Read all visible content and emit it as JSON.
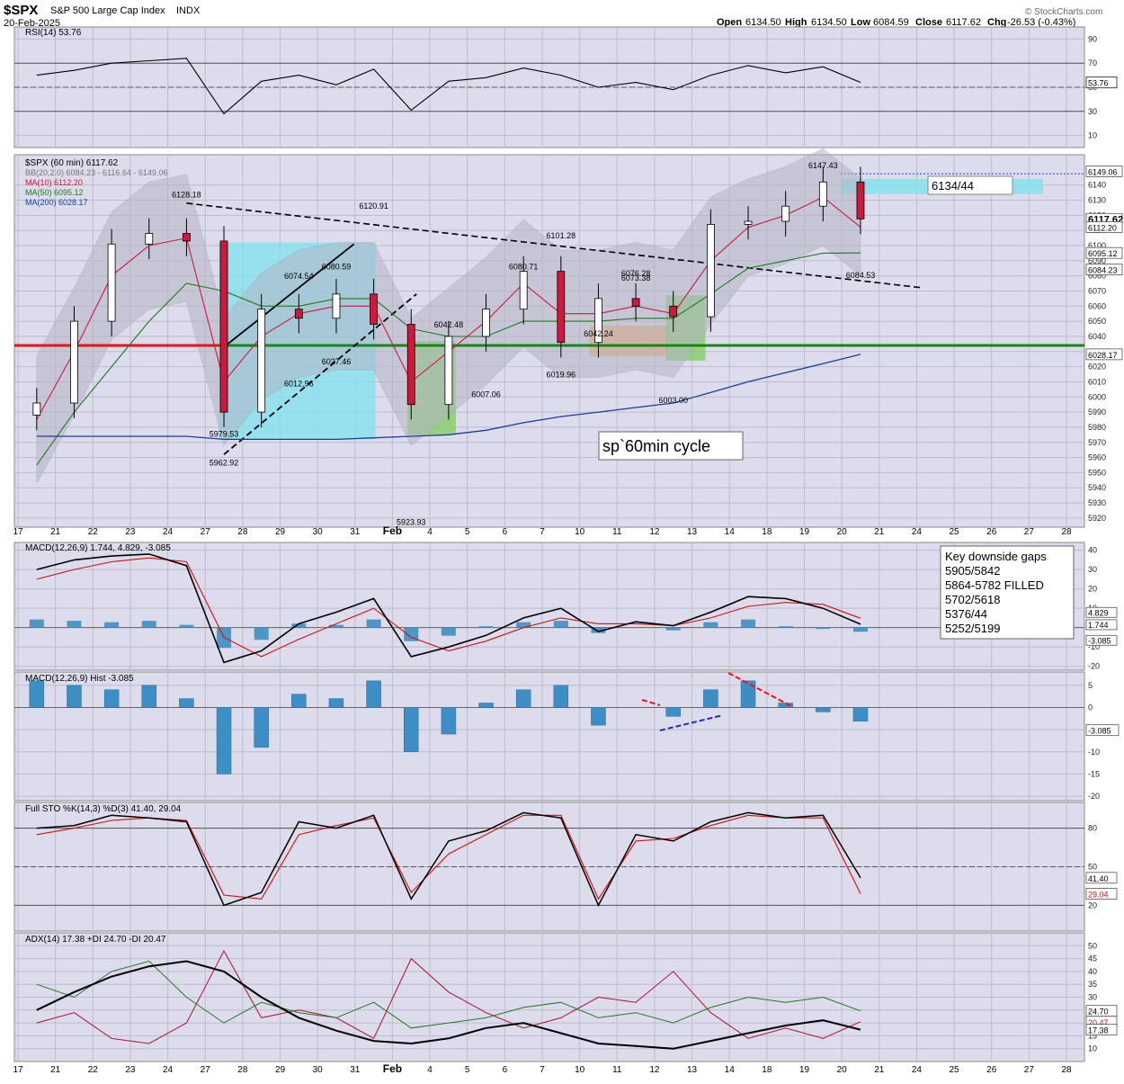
{
  "header": {
    "symbol": "$SPX",
    "name": "S&P 500 Large Cap Index",
    "exchange": "INDX",
    "date": "20-Feb-2025",
    "open_label": "Open",
    "open": "6134.50",
    "high_label": "High",
    "high": "6134.50",
    "low_label": "Low",
    "low": "6084.59",
    "close_label": "Close",
    "close": "6117.62",
    "chg_label": "Chg",
    "chg": "-26.53 (-0.43%)",
    "watermark": "© StockCharts.com"
  },
  "colors": {
    "panel_bg": "#dcdcec",
    "grid": "#bcbccc",
    "up": "#ffffff",
    "down": "#cc1a3c",
    "ma10": "#cc1a3c",
    "ma50": "#1f7a1f",
    "ma200": "#1a3c9c",
    "bb": "#a8a8b8",
    "hist": "#3d8ec4",
    "support": "#128a12",
    "resistance": "#ee1111",
    "box_cyan": "#7fe3ee",
    "box_green": "#7fcc5c",
    "box_orange": "#f0a35a"
  },
  "legends": {
    "rsi": "RSI(14) 53.76",
    "price": "$SPX (60 min) 6117.62",
    "bb": "BB(20,2.0) 6084.23 - 6116.64 - 6149.06",
    "ma10": "MA(10) 6112.20",
    "ma50": "MA(50) 6095.12",
    "ma200": "MA(200) 6028.17",
    "macd": "MACD(12,26,9) 1.744, 4.829, -3.085",
    "hist": "MACD(12,26,9) Hist -3.085",
    "sto": "Full STO %K(14,3) %D(3) 41.40, 29.04",
    "adx": "ADX(14) 17.38 +DI 24.70 -DI 20.47"
  },
  "annotations": {
    "target_box": "6134/44",
    "cycle": "sp`60min cycle",
    "gaps_title": "Key downside gaps",
    "gaps": [
      "5905/5842",
      "5864-5782 FILLED",
      "5702/5618",
      "5376/44",
      "5252/5199"
    ]
  },
  "chart_data": [
    {
      "type": "line",
      "panel": "rsi",
      "title": "RSI(14) 53.76",
      "ylim": [
        0,
        100
      ],
      "ticks": [
        10,
        30,
        50,
        70,
        90
      ],
      "last_label": "53.76",
      "x": [
        "Jan 17",
        "Jan 21",
        "Jan 22",
        "Jan 23",
        "Jan 24",
        "Jan 27",
        "Jan 28",
        "Jan 29",
        "Jan 30",
        "Jan 31",
        "Feb 3",
        "Feb 4",
        "Feb 5",
        "Feb 6",
        "Feb 7",
        "Feb 10",
        "Feb 11",
        "Feb 12",
        "Feb 13",
        "Feb 14",
        "Feb 18",
        "Feb 19",
        "Feb 20"
      ],
      "values": [
        60,
        64,
        70,
        72,
        74,
        28,
        55,
        60,
        52,
        65,
        31,
        55,
        58,
        66,
        60,
        50,
        54,
        48,
        60,
        68,
        62,
        67,
        54
      ]
    },
    {
      "type": "line",
      "panel": "price",
      "title": "$SPX (60 min) 6117.62",
      "ylim": [
        5914,
        6160
      ],
      "ticks": [
        5920,
        5930,
        5940,
        5950,
        5960,
        5970,
        5980,
        5990,
        6000,
        6010,
        6020,
        6030,
        6040,
        6050,
        6060,
        6070,
        6080,
        6090,
        6100,
        6110,
        6120,
        6130,
        6140
      ],
      "right_labels": [
        "6149.06",
        "6117.62",
        "6112.20",
        "6095.12",
        "6084.23",
        "6028.17"
      ],
      "x": [
        "Jan 17",
        "Jan 21",
        "Jan 22",
        "Jan 23",
        "Jan 24",
        "Jan 27",
        "Jan 28",
        "Jan 29",
        "Jan 30",
        "Jan 31",
        "Feb 3",
        "Feb 4",
        "Feb 5",
        "Feb 6",
        "Feb 7",
        "Feb 10",
        "Feb 11",
        "Feb 12",
        "Feb 13",
        "Feb 14",
        "Feb 18",
        "Feb 19",
        "Feb 20"
      ],
      "series": [
        {
          "name": "$SPX",
          "values": [
            5996,
            6050,
            6101,
            6108,
            6103,
            5990,
            6058,
            6052,
            6068,
            6048,
            5995,
            6040,
            6058,
            6083,
            6036,
            6065,
            6060,
            6053,
            6114,
            6116,
            6126,
            6142,
            6117.62
          ]
        },
        {
          "name": "MA(10)",
          "values": [
            5985,
            6030,
            6080,
            6100,
            6105,
            6010,
            6040,
            6055,
            6060,
            6060,
            6010,
            6030,
            6050,
            6075,
            6055,
            6055,
            6060,
            6055,
            6090,
            6112,
            6120,
            6132,
            6112.2
          ]
        },
        {
          "name": "MA(50)",
          "values": [
            5955,
            5990,
            6020,
            6050,
            6075,
            6070,
            6060,
            6060,
            6065,
            6065,
            6045,
            6040,
            6040,
            6050,
            6050,
            6050,
            6052,
            6052,
            6068,
            6085,
            6090,
            6095,
            6095.12
          ]
        },
        {
          "name": "MA(200)",
          "values": [
            5974,
            5974,
            5974,
            5974,
            5974,
            5972,
            5972,
            5972,
            5972,
            5973,
            5974,
            5975,
            5978,
            5983,
            5987,
            5990,
            5993,
            5996,
            6003,
            6010,
            6016,
            6022,
            6028.17
          ]
        }
      ],
      "price_labels": [
        {
          "x": "Jan 24",
          "y": 6128.18,
          "text": "6128.18"
        },
        {
          "x": "Jan 27",
          "y": 5962.92,
          "text": "5962.92"
        },
        {
          "x": "Jan 27",
          "y": 5979.53,
          "text": "5979.53"
        },
        {
          "x": "Jan 29",
          "y": 6074.54,
          "text": "6074.54"
        },
        {
          "x": "Jan 29",
          "y": 6012.96,
          "text": "6012.96"
        },
        {
          "x": "Jan 30",
          "y": 6080.59,
          "text": "6080.59"
        },
        {
          "x": "Jan 30",
          "y": 6027.46,
          "text": "6027.46"
        },
        {
          "x": "Jan 31",
          "y": 6120.91,
          "text": "6120.91"
        },
        {
          "x": "Feb 3",
          "y": 5923.93,
          "text": "5923.93"
        },
        {
          "x": "Feb 4",
          "y": 6042.48,
          "text": "6042.48"
        },
        {
          "x": "Feb 5",
          "y": 6007.06,
          "text": "6007.06"
        },
        {
          "x": "Feb 6",
          "y": 6080.71,
          "text": "6080.71"
        },
        {
          "x": "Feb 7",
          "y": 6101.28,
          "text": "6101.28"
        },
        {
          "x": "Feb 7",
          "y": 6019.96,
          "text": "6019.96"
        },
        {
          "x": "Feb 10",
          "y": 6042.24,
          "text": "6042.24"
        },
        {
          "x": "Feb 11",
          "y": 6073.38,
          "text": "6073.38"
        },
        {
          "x": "Feb 11",
          "y": 6076.28,
          "text": "6076.28"
        },
        {
          "x": "Feb 12",
          "y": 6003.0,
          "text": "6003.00"
        },
        {
          "x": "Feb 19",
          "y": 6147.43,
          "text": "6147.43"
        },
        {
          "x": "Feb 20",
          "y": 6084.53,
          "text": "6084.53"
        }
      ]
    },
    {
      "type": "line",
      "panel": "macd",
      "title": "MACD(12,26,9) 1.744, 4.829, -3.085",
      "ylim": [
        -22,
        44
      ],
      "ticks": [
        -20,
        -10,
        0,
        10,
        20,
        30,
        40
      ],
      "right_labels": [
        "4.829",
        "1.744",
        "-3.085"
      ],
      "x": [
        "Jan 17",
        "Jan 21",
        "Jan 22",
        "Jan 23",
        "Jan 24",
        "Jan 27",
        "Jan 28",
        "Jan 29",
        "Jan 30",
        "Jan 31",
        "Feb 3",
        "Feb 4",
        "Feb 5",
        "Feb 6",
        "Feb 7",
        "Feb 10",
        "Feb 11",
        "Feb 12",
        "Feb 13",
        "Feb 14",
        "Feb 18",
        "Feb 19",
        "Feb 20"
      ],
      "series": [
        {
          "name": "MACD",
          "values": [
            30,
            35,
            37,
            38,
            32,
            -18,
            -12,
            2,
            8,
            15,
            -15,
            -10,
            -4,
            5,
            10,
            -2,
            3,
            1,
            8,
            16,
            15,
            10,
            1.744
          ]
        },
        {
          "name": "Signal",
          "values": [
            25,
            30,
            34,
            36,
            34,
            -5,
            -15,
            -6,
            2,
            10,
            -5,
            -12,
            -7,
            0,
            5,
            2,
            2,
            1,
            5,
            11,
            13,
            12,
            4.829
          ]
        }
      ]
    },
    {
      "type": "bar",
      "panel": "histogram",
      "title": "MACD(12,26,9) Hist -3.085",
      "ylim": [
        -21,
        8
      ],
      "ticks": [
        -20,
        -15,
        -10,
        -5,
        0,
        5
      ],
      "last_label": "-3.085",
      "x": [
        "Jan 17",
        "Jan 21",
        "Jan 22",
        "Jan 23",
        "Jan 24",
        "Jan 27",
        "Jan 28",
        "Jan 29",
        "Jan 30",
        "Jan 31",
        "Feb 3",
        "Feb 4",
        "Feb 5",
        "Feb 6",
        "Feb 7",
        "Feb 10",
        "Feb 11",
        "Feb 12",
        "Feb 13",
        "Feb 14",
        "Feb 18",
        "Feb 19",
        "Feb 20"
      ],
      "values": [
        6,
        5,
        4,
        5,
        2,
        -15,
        -9,
        3,
        2,
        6,
        -10,
        -6,
        1,
        4,
        5,
        -4,
        0,
        -2,
        4,
        6,
        1,
        -1,
        -3.085
      ]
    },
    {
      "type": "line",
      "panel": "stochastic",
      "title": "Full STO %K(14,3) %D(3) 41.40, 29.04",
      "ylim": [
        0,
        100
      ],
      "ticks": [
        20,
        50,
        80
      ],
      "right_labels": [
        "41.40",
        "29.04"
      ],
      "x": [
        "Jan 17",
        "Jan 21",
        "Jan 22",
        "Jan 23",
        "Jan 24",
        "Jan 27",
        "Jan 28",
        "Jan 29",
        "Jan 30",
        "Jan 31",
        "Feb 3",
        "Feb 4",
        "Feb 5",
        "Feb 6",
        "Feb 7",
        "Feb 10",
        "Feb 11",
        "Feb 12",
        "Feb 13",
        "Feb 14",
        "Feb 18",
        "Feb 19",
        "Feb 20"
      ],
      "series": [
        {
          "name": "%K",
          "values": [
            80,
            82,
            90,
            88,
            85,
            20,
            30,
            85,
            80,
            90,
            25,
            70,
            78,
            92,
            88,
            20,
            75,
            70,
            85,
            92,
            88,
            90,
            41.4
          ]
        },
        {
          "name": "%D",
          "values": [
            75,
            80,
            86,
            88,
            86,
            28,
            25,
            75,
            82,
            88,
            30,
            60,
            75,
            90,
            90,
            25,
            70,
            72,
            82,
            90,
            88,
            88,
            29.04
          ]
        }
      ]
    },
    {
      "type": "line",
      "panel": "adx",
      "title": "ADX(14) 17.38 +DI 24.70 -DI 20.47",
      "ylim": [
        5,
        55
      ],
      "ticks": [
        10,
        15,
        20,
        25,
        30,
        35,
        40,
        45,
        50
      ],
      "right_labels": [
        "24.70",
        "20.47",
        "17.38"
      ],
      "x": [
        "Jan 17",
        "Jan 21",
        "Jan 22",
        "Jan 23",
        "Jan 24",
        "Jan 27",
        "Jan 28",
        "Jan 29",
        "Jan 30",
        "Jan 31",
        "Feb 3",
        "Feb 4",
        "Feb 5",
        "Feb 6",
        "Feb 7",
        "Feb 10",
        "Feb 11",
        "Feb 12",
        "Feb 13",
        "Feb 14",
        "Feb 18",
        "Feb 19",
        "Feb 20"
      ],
      "series": [
        {
          "name": "ADX",
          "values": [
            25,
            32,
            38,
            42,
            44,
            40,
            30,
            22,
            17,
            13,
            12,
            14,
            18,
            20,
            16,
            12,
            11,
            10,
            13,
            16,
            19,
            21,
            17.38
          ]
        },
        {
          "name": "+DI",
          "values": [
            35,
            30,
            40,
            44,
            30,
            20,
            28,
            24,
            22,
            28,
            18,
            20,
            22,
            26,
            28,
            22,
            24,
            20,
            26,
            30,
            28,
            30,
            24.7
          ]
        },
        {
          "name": "-DI",
          "values": [
            20,
            24,
            14,
            12,
            20,
            48,
            22,
            25,
            22,
            14,
            45,
            32,
            24,
            18,
            22,
            30,
            28,
            40,
            24,
            14,
            18,
            14,
            20.47
          ]
        }
      ]
    }
  ],
  "x_axis": {
    "labels": [
      "17",
      "21",
      "22",
      "23",
      "24",
      "27",
      "28",
      "29",
      "30",
      "31",
      "Feb",
      "4",
      "5",
      "6",
      "7",
      "10",
      "11",
      "12",
      "13",
      "14",
      "18",
      "19",
      "20",
      "21",
      "24",
      "25",
      "26",
      "27",
      "28"
    ],
    "bold_index": 10
  }
}
